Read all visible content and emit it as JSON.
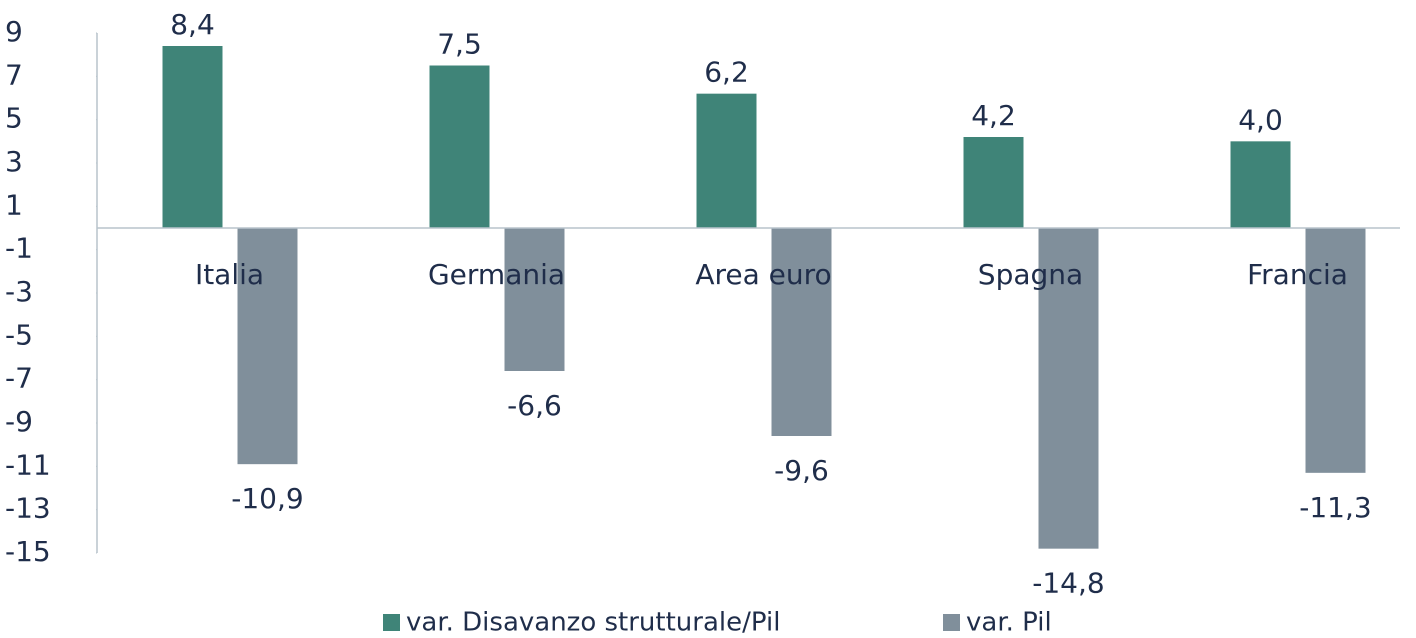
{
  "chart_data": {
    "type": "bar",
    "categories": [
      "Italia",
      "Germania",
      "Area euro",
      "Spagna",
      "Francia"
    ],
    "series": [
      {
        "name": "var. Disavanzo strutturale/Pil",
        "color": "#3f8478",
        "values": [
          8.4,
          7.5,
          6.2,
          4.2,
          4.0
        ],
        "value_labels": [
          "8,4",
          "7,5",
          "6,2",
          "4,2",
          "4,0"
        ]
      },
      {
        "name": "var. Pil",
        "color": "#808f9b",
        "values": [
          -10.9,
          -6.6,
          -9.6,
          -14.8,
          -11.3
        ],
        "value_labels": [
          "-10,9",
          "-6,6",
          "-9,6",
          "-14,8",
          "-11,3"
        ]
      }
    ],
    "ylim": [
      -15,
      9
    ],
    "yticks": [
      9,
      7,
      5,
      3,
      1,
      -1,
      -3,
      -5,
      -7,
      -9,
      -11,
      -13,
      -15
    ],
    "legend": "bottom"
  }
}
